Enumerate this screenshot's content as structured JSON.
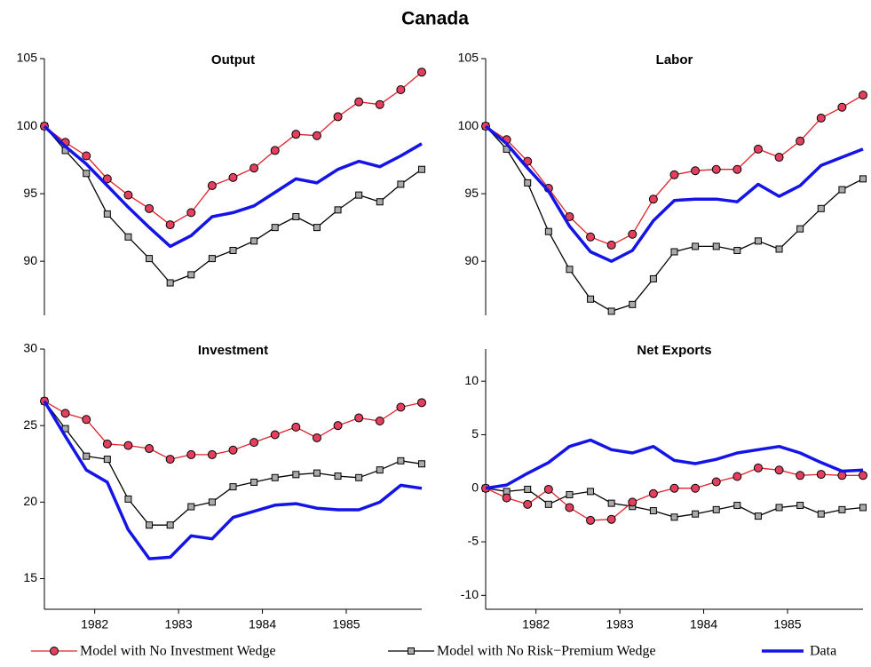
{
  "title": "Canada",
  "chart_data": [
    {
      "type": "line",
      "title": "Output",
      "x": [
        1981.4,
        1981.65,
        1981.9,
        1982.15,
        1982.4,
        1982.65,
        1982.9,
        1983.15,
        1983.4,
        1983.65,
        1983.9,
        1984.15,
        1984.4,
        1984.65,
        1984.9,
        1985.15,
        1985.4,
        1985.65,
        1985.9
      ],
      "xlim": [
        1981.4,
        1985.9
      ],
      "ylim": [
        86,
        105
      ],
      "yticks": [
        90,
        95,
        100,
        105
      ],
      "series": [
        {
          "name": "Model with No Investment Wedge",
          "color": "#e0202a",
          "marker": "circle",
          "values": [
            100,
            98.8,
            97.8,
            96.1,
            94.9,
            93.9,
            92.7,
            93.6,
            95.6,
            96.2,
            96.9,
            98.2,
            99.4,
            99.3,
            100.7,
            101.8,
            101.6,
            102.7,
            104.0
          ]
        },
        {
          "name": "Model with No Risk−Premium Wedge",
          "color": "#000000",
          "marker": "square",
          "values": [
            100,
            98.2,
            96.5,
            93.5,
            91.8,
            90.2,
            88.4,
            89.0,
            90.2,
            90.8,
            91.5,
            92.5,
            93.3,
            92.5,
            93.8,
            94.9,
            94.4,
            95.7,
            96.8
          ]
        },
        {
          "name": "Data",
          "color": "#1414e6",
          "marker": "none",
          "values": [
            100,
            98.5,
            97.2,
            95.6,
            94.0,
            92.5,
            91.1,
            91.9,
            93.3,
            93.6,
            94.1,
            95.1,
            96.1,
            95.8,
            96.8,
            97.4,
            97.0,
            97.8,
            98.7
          ]
        }
      ]
    },
    {
      "type": "line",
      "title": "Labor",
      "x": [
        1981.4,
        1981.65,
        1981.9,
        1982.15,
        1982.4,
        1982.65,
        1982.9,
        1983.15,
        1983.4,
        1983.65,
        1983.9,
        1984.15,
        1984.4,
        1984.65,
        1984.9,
        1985.15,
        1985.4,
        1985.65,
        1985.9
      ],
      "xlim": [
        1981.4,
        1985.9
      ],
      "ylim": [
        86,
        105
      ],
      "yticks": [
        90,
        95,
        100,
        105
      ],
      "series": [
        {
          "color": "#e0202a",
          "marker": "circle",
          "values": [
            100,
            99.0,
            97.4,
            95.4,
            93.3,
            91.8,
            91.2,
            92.0,
            94.6,
            96.4,
            96.7,
            96.8,
            96.8,
            98.3,
            97.7,
            98.9,
            100.6,
            101.4,
            102.3
          ]
        },
        {
          "color": "#000000",
          "marker": "square",
          "values": [
            100,
            98.3,
            95.8,
            92.2,
            89.4,
            87.2,
            86.3,
            86.8,
            88.7,
            90.7,
            91.1,
            91.1,
            90.8,
            91.5,
            90.9,
            92.4,
            93.9,
            95.3,
            96.1
          ]
        },
        {
          "color": "#1414e6",
          "marker": "none",
          "values": [
            100,
            98.7,
            96.9,
            95.2,
            92.6,
            90.7,
            90.0,
            90.8,
            93.0,
            94.5,
            94.6,
            94.6,
            94.4,
            95.7,
            94.8,
            95.6,
            97.1,
            97.7,
            98.3
          ]
        }
      ]
    },
    {
      "type": "line",
      "title": "Investment",
      "x": [
        1981.4,
        1981.65,
        1981.9,
        1982.15,
        1982.4,
        1982.65,
        1982.9,
        1983.15,
        1983.4,
        1983.65,
        1983.9,
        1984.15,
        1984.4,
        1984.65,
        1984.9,
        1985.15,
        1985.4,
        1985.65,
        1985.9
      ],
      "xlim": [
        1981.4,
        1985.9
      ],
      "xticks": [
        1982,
        1983,
        1984,
        1985
      ],
      "ylim": [
        13,
        30
      ],
      "yticks": [
        15,
        20,
        25,
        30
      ],
      "series": [
        {
          "color": "#e0202a",
          "marker": "circle",
          "values": [
            26.6,
            25.8,
            25.4,
            23.8,
            23.7,
            23.5,
            22.8,
            23.1,
            23.1,
            23.4,
            23.9,
            24.4,
            24.9,
            24.2,
            25.0,
            25.5,
            25.3,
            26.2,
            26.5
          ]
        },
        {
          "color": "#000000",
          "marker": "square",
          "values": [
            26.6,
            24.8,
            23.0,
            22.8,
            20.2,
            18.5,
            18.5,
            19.7,
            20.0,
            21.0,
            21.3,
            21.6,
            21.8,
            21.9,
            21.7,
            21.6,
            22.1,
            22.7,
            22.5
          ]
        },
        {
          "color": "#1414e6",
          "marker": "none",
          "values": [
            26.6,
            24.3,
            22.1,
            21.3,
            18.2,
            16.3,
            16.4,
            17.8,
            17.6,
            19.0,
            19.4,
            19.8,
            19.9,
            19.6,
            19.5,
            19.5,
            20.0,
            21.1,
            20.9
          ]
        }
      ]
    },
    {
      "type": "line",
      "title": "Net Exports",
      "x": [
        1981.4,
        1981.65,
        1981.9,
        1982.15,
        1982.4,
        1982.65,
        1982.9,
        1983.15,
        1983.4,
        1983.65,
        1983.9,
        1984.15,
        1984.4,
        1984.65,
        1984.9,
        1985.15,
        1985.4,
        1985.65,
        1985.9
      ],
      "xlim": [
        1981.4,
        1985.9
      ],
      "xticks": [
        1982,
        1983,
        1984,
        1985
      ],
      "ylim": [
        -11.3,
        13
      ],
      "yticks": [
        -10,
        -5,
        0,
        5,
        10
      ],
      "series": [
        {
          "color": "#e0202a",
          "marker": "circle",
          "values": [
            0,
            -0.9,
            -1.5,
            -0.1,
            -1.8,
            -3.0,
            -2.9,
            -1.3,
            -0.5,
            0,
            0,
            0.6,
            1.1,
            1.9,
            1.7,
            1.2,
            1.3,
            1.2,
            1.2
          ]
        },
        {
          "color": "#000000",
          "marker": "square",
          "values": [
            0,
            -0.3,
            -0.1,
            -1.5,
            -0.6,
            -0.3,
            -1.4,
            -1.7,
            -2.1,
            -2.7,
            -2.4,
            -2.0,
            -1.6,
            -2.6,
            -1.8,
            -1.6,
            -2.4,
            -2.0,
            -1.8
          ]
        },
        {
          "color": "#1414e6",
          "marker": "none",
          "values": [
            0,
            0.3,
            1.4,
            2.4,
            3.9,
            4.5,
            3.6,
            3.3,
            3.9,
            2.6,
            2.3,
            2.7,
            3.3,
            3.6,
            3.9,
            3.3,
            2.4,
            1.6,
            1.7
          ]
        }
      ]
    }
  ]
}
